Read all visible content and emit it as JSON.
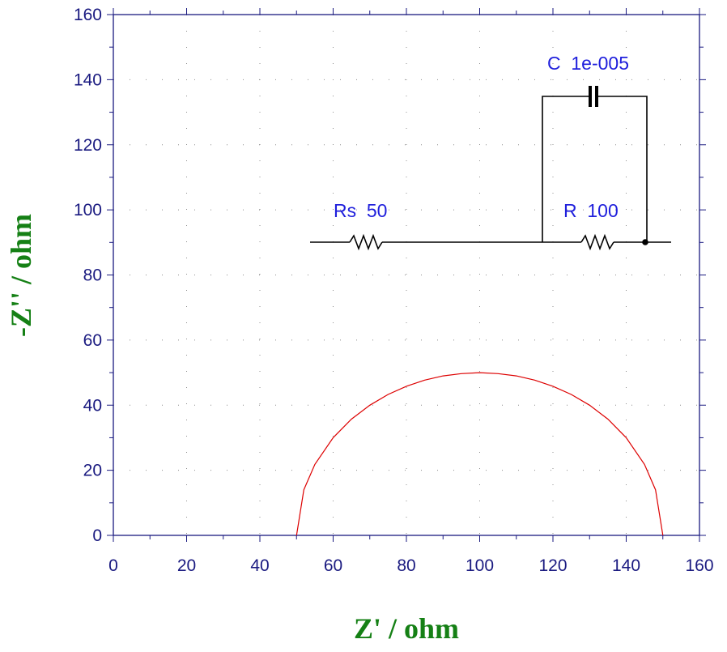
{
  "chart_data": {
    "type": "line",
    "xlabel": "Z' / ohm",
    "ylabel": "-Z'' / ohm",
    "xlim": [
      0,
      160
    ],
    "ylim": [
      0,
      160
    ],
    "x_ticks": [
      "0",
      "20",
      "40",
      "60",
      "80",
      "100",
      "120",
      "140",
      "160"
    ],
    "y_ticks": [
      "0",
      "20",
      "40",
      "60",
      "80",
      "100",
      "120",
      "140",
      "160"
    ],
    "grid": "dotted",
    "series": [
      {
        "color": "#dd0000",
        "x": [
          50,
          52,
          55,
          60,
          65,
          70,
          75,
          80,
          85,
          90,
          95,
          100,
          105,
          110,
          115,
          120,
          125,
          130,
          135,
          140,
          145,
          148,
          150
        ],
        "y": [
          0,
          14,
          21.8,
          30,
          35.7,
          40,
          43.3,
          45.8,
          47.7,
          49,
          49.7,
          50,
          49.7,
          49,
          47.7,
          45.8,
          43.3,
          40,
          35.7,
          30,
          21.8,
          14,
          0
        ]
      }
    ],
    "circuit": {
      "rs_label": "Rs  50",
      "r_label": "R  100",
      "c_label": "C  1e-005"
    }
  }
}
